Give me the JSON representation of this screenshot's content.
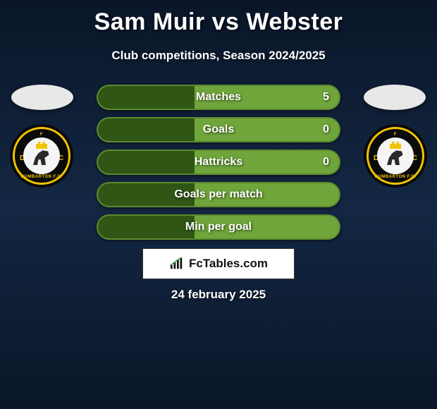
{
  "title": "Sam Muir vs Webster",
  "subtitle": "Club competitions, Season 2024/2025",
  "date": "24 february 2025",
  "brand": {
    "name": "FcTables.com"
  },
  "colors": {
    "bar_border": "#5c8a2e",
    "bar_dark": "#2f5614",
    "bar_light": "#6fa53a",
    "background_top": "#0a1628",
    "background_mid": "#132743",
    "text_primary": "#ffffff"
  },
  "bar_style": {
    "height": 36,
    "border_radius": 18,
    "border_width": 2,
    "font_size": 16,
    "font_weight": 700,
    "spacing": 10
  },
  "stats": [
    {
      "label": "Matches",
      "left_value": "",
      "right_value": "5",
      "left_fill_pct": 40
    },
    {
      "label": "Goals",
      "left_value": "",
      "right_value": "0",
      "left_fill_pct": 40
    },
    {
      "label": "Hattricks",
      "left_value": "",
      "right_value": "0",
      "left_fill_pct": 40
    },
    {
      "label": "Goals per match",
      "left_value": "",
      "right_value": "",
      "left_fill_pct": 40
    },
    {
      "label": "Min per goal",
      "left_value": "",
      "right_value": "",
      "left_fill_pct": 40
    }
  ],
  "club_badge": {
    "top_text": "F",
    "bottom_text": "DUMBARTON F.C.",
    "ring_color": "#f2c400",
    "outer_color": "#0a0a0a",
    "inner_color": "#f5f5f5"
  }
}
